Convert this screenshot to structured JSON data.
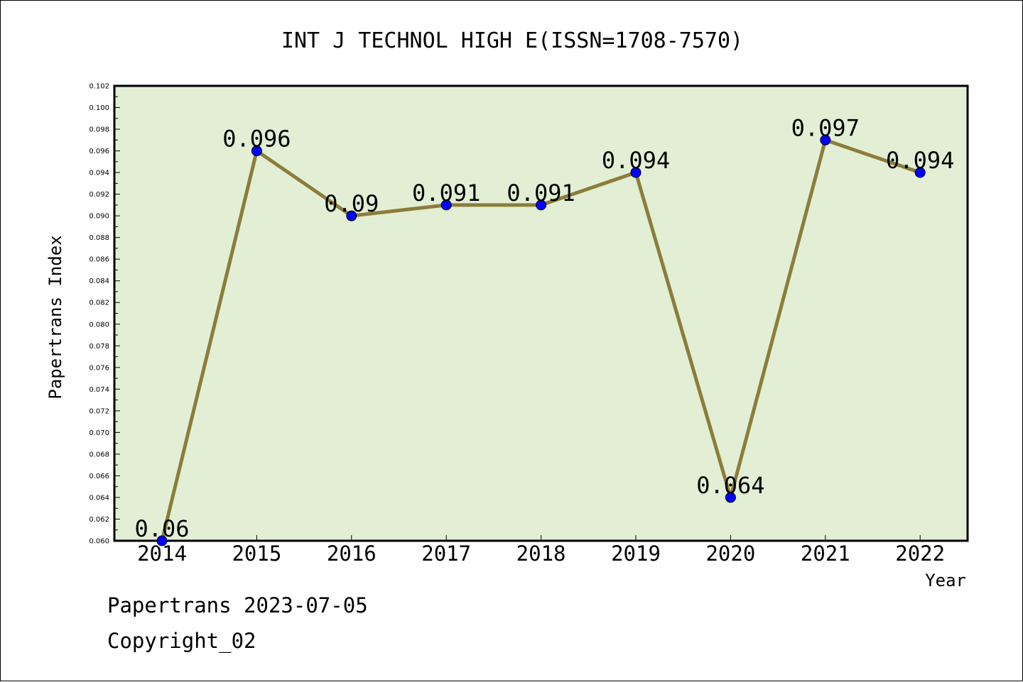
{
  "chart_data": {
    "type": "line",
    "title": "INT J TECHNOL HIGH E(ISSN=1708-7570)",
    "xlabel": "Year",
    "ylabel": "Papertrans Index",
    "categories": [
      "2014",
      "2015",
      "2016",
      "2017",
      "2018",
      "2019",
      "2020",
      "2021",
      "2022"
    ],
    "series": [
      {
        "values": [
          0.06,
          0.096,
          0.09,
          0.091,
          0.091,
          0.094,
          0.064,
          0.097,
          0.094
        ],
        "labels": [
          "0.06",
          "0.096",
          "0.09",
          "0.091",
          "0.091",
          "0.094",
          "0.064",
          "0.097",
          "0.094"
        ]
      }
    ],
    "ylim": [
      0.06,
      0.102
    ],
    "yticks": [
      "0.060",
      "0.062",
      "0.064",
      "0.066",
      "0.068",
      "0.070",
      "0.072",
      "0.074",
      "0.076",
      "0.078",
      "0.080",
      "0.082",
      "0.084",
      "0.086",
      "0.088",
      "0.090",
      "0.092",
      "0.094",
      "0.096",
      "0.098",
      "0.100",
      "0.102"
    ],
    "grid": false,
    "colors": {
      "plot_background": "#e2efd5",
      "line": "#8b7d3a",
      "marker": "#0000ff"
    }
  },
  "footer": {
    "line1": "Papertrans 2023-07-05",
    "line2": "Copyright_02"
  }
}
